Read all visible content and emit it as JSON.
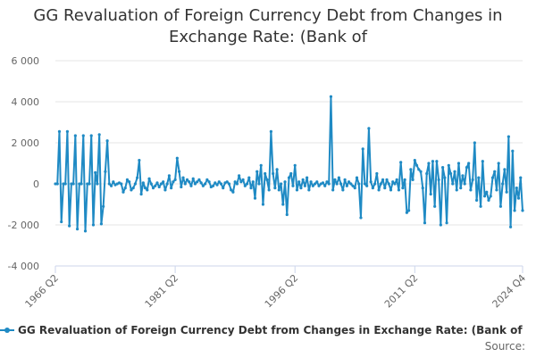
{
  "chart_data": {
    "type": "line",
    "title": "GG Revaluation of Foreign Currency Debt from Changes in Exchange Rate: (Bank of",
    "xlabel": "",
    "ylabel": "",
    "ylim": [
      -4000,
      6000
    ],
    "y_ticks": [
      6000,
      4000,
      2000,
      0,
      -2000,
      -4000
    ],
    "y_tick_labels": [
      "6 000",
      "4 000",
      "2 000",
      "0",
      "-2 000",
      "-4 000"
    ],
    "x_range": [
      "1966 Q2",
      "2024 Q4"
    ],
    "x_ticks": [
      "1966 Q2",
      "1981 Q2",
      "1996 Q2",
      "2011 Q2",
      "2024 Q4"
    ],
    "grid": true,
    "legend_position": "bottom",
    "series": [
      {
        "name": "GG Revaluation of Foreign Currency Debt from Changes in Exchange Rate: (Bank of",
        "color": "#1f8ac4",
        "points": [
          [
            "1966 Q2",
            0
          ],
          [
            "1966 Q3",
            0
          ],
          [
            "1966 Q4",
            2550
          ],
          [
            "1967 Q1",
            -1850
          ],
          [
            "1967 Q2",
            0
          ],
          [
            "1967 Q3",
            0
          ],
          [
            "1967 Q4",
            2550
          ],
          [
            "1968 Q1",
            -2050
          ],
          [
            "1968 Q2",
            0
          ],
          [
            "1968 Q3",
            0
          ],
          [
            "1968 Q4",
            2350
          ],
          [
            "1969 Q1",
            -2200
          ],
          [
            "1969 Q2",
            0
          ],
          [
            "1969 Q3",
            0
          ],
          [
            "1969 Q4",
            2350
          ],
          [
            "1970 Q1",
            -2300
          ],
          [
            "1970 Q2",
            0
          ],
          [
            "1970 Q3",
            0
          ],
          [
            "1970 Q4",
            2350
          ],
          [
            "1971 Q1",
            -2000
          ],
          [
            "1971 Q2",
            550
          ],
          [
            "1971 Q3",
            0
          ],
          [
            "1971 Q4",
            2400
          ],
          [
            "1972 Q1",
            -1950
          ],
          [
            "1972 Q2",
            -1100
          ],
          [
            "1972 Q3",
            600
          ],
          [
            "1972 Q4",
            2100
          ],
          [
            "1973 Q1",
            0
          ],
          [
            "1973 Q2",
            -100
          ],
          [
            "1973 Q3",
            100
          ],
          [
            "1973 Q4",
            -50
          ],
          [
            "1974 Q1",
            0
          ],
          [
            "1974 Q2",
            50
          ],
          [
            "1974 Q3",
            0
          ],
          [
            "1974 Q4",
            -400
          ],
          [
            "1975 Q1",
            -200
          ],
          [
            "1975 Q2",
            200
          ],
          [
            "1975 Q3",
            100
          ],
          [
            "1975 Q4",
            -300
          ],
          [
            "1976 Q1",
            -200
          ],
          [
            "1976 Q2",
            0
          ],
          [
            "1976 Q3",
            300
          ],
          [
            "1976 Q4",
            1150
          ],
          [
            "1977 Q1",
            -500
          ],
          [
            "1977 Q2",
            50
          ],
          [
            "1977 Q3",
            -200
          ],
          [
            "1977 Q4",
            -300
          ],
          [
            "1978 Q1",
            250
          ],
          [
            "1978 Q2",
            0
          ],
          [
            "1978 Q3",
            -200
          ],
          [
            "1978 Q4",
            -100
          ],
          [
            "1979 Q1",
            50
          ],
          [
            "1979 Q2",
            -150
          ],
          [
            "1979 Q3",
            0
          ],
          [
            "1979 Q4",
            100
          ],
          [
            "1980 Q1",
            -300
          ],
          [
            "1980 Q2",
            0
          ],
          [
            "1980 Q3",
            400
          ],
          [
            "1980 Q4",
            -200
          ],
          [
            "1981 Q1",
            100
          ],
          [
            "1981 Q2",
            200
          ],
          [
            "1981 Q3",
            1250
          ],
          [
            "1981 Q4",
            600
          ],
          [
            "1982 Q1",
            -150
          ],
          [
            "1982 Q2",
            300
          ],
          [
            "1982 Q3",
            0
          ],
          [
            "1982 Q4",
            200
          ],
          [
            "1983 Q1",
            100
          ],
          [
            "1983 Q2",
            -100
          ],
          [
            "1983 Q3",
            250
          ],
          [
            "1983 Q4",
            0
          ],
          [
            "1984 Q1",
            100
          ],
          [
            "1984 Q2",
            200
          ],
          [
            "1984 Q3",
            50
          ],
          [
            "1984 Q4",
            -100
          ],
          [
            "1985 Q1",
            0
          ],
          [
            "1985 Q2",
            200
          ],
          [
            "1985 Q3",
            100
          ],
          [
            "1985 Q4",
            -150
          ],
          [
            "1986 Q1",
            -100
          ],
          [
            "1986 Q2",
            50
          ],
          [
            "1986 Q3",
            -50
          ],
          [
            "1986 Q4",
            100
          ],
          [
            "1987 Q1",
            0
          ],
          [
            "1987 Q2",
            -200
          ],
          [
            "1987 Q3",
            50
          ],
          [
            "1987 Q4",
            100
          ],
          [
            "1988 Q1",
            0
          ],
          [
            "1988 Q2",
            -300
          ],
          [
            "1988 Q3",
            -400
          ],
          [
            "1988 Q4",
            100
          ],
          [
            "1989 Q1",
            0
          ],
          [
            "1989 Q2",
            400
          ],
          [
            "1989 Q3",
            100
          ],
          [
            "1989 Q4",
            200
          ],
          [
            "1990 Q1",
            -100
          ],
          [
            "1990 Q2",
            0
          ],
          [
            "1990 Q3",
            300
          ],
          [
            "1990 Q4",
            -200
          ],
          [
            "1991 Q1",
            100
          ],
          [
            "1991 Q2",
            -700
          ],
          [
            "1991 Q3",
            600
          ],
          [
            "1991 Q4",
            0
          ],
          [
            "1992 Q1",
            900
          ],
          [
            "1992 Q2",
            -1000
          ],
          [
            "1992 Q3",
            500
          ],
          [
            "1992 Q4",
            200
          ],
          [
            "1993 Q1",
            -300
          ],
          [
            "1993 Q2",
            2550
          ],
          [
            "1993 Q3",
            500
          ],
          [
            "1993 Q4",
            -200
          ],
          [
            "1994 Q1",
            700
          ],
          [
            "1994 Q2",
            -300
          ],
          [
            "1994 Q3",
            0
          ],
          [
            "1994 Q4",
            -1000
          ],
          [
            "1995 Q1",
            100
          ],
          [
            "1995 Q2",
            -1500
          ],
          [
            "1995 Q3",
            300
          ],
          [
            "1995 Q4",
            500
          ],
          [
            "1996 Q1",
            -100
          ],
          [
            "1996 Q2",
            900
          ],
          [
            "1996 Q3",
            -300
          ],
          [
            "1996 Q4",
            100
          ],
          [
            "1997 Q1",
            -200
          ],
          [
            "1997 Q2",
            200
          ],
          [
            "1997 Q3",
            -100
          ],
          [
            "1997 Q4",
            300
          ],
          [
            "1998 Q1",
            -300
          ],
          [
            "1998 Q2",
            100
          ],
          [
            "1998 Q3",
            -100
          ],
          [
            "1998 Q4",
            0
          ],
          [
            "1999 Q1",
            100
          ],
          [
            "1999 Q2",
            -100
          ],
          [
            "1999 Q3",
            0
          ],
          [
            "1999 Q4",
            50
          ],
          [
            "2000 Q1",
            -100
          ],
          [
            "2000 Q2",
            100
          ],
          [
            "2000 Q3",
            0
          ],
          [
            "2000 Q4",
            4250
          ],
          [
            "2001 Q1",
            -300
          ],
          [
            "2001 Q2",
            200
          ],
          [
            "2001 Q3",
            0
          ],
          [
            "2001 Q4",
            300
          ],
          [
            "2002 Q1",
            0
          ],
          [
            "2002 Q2",
            -300
          ],
          [
            "2002 Q3",
            200
          ],
          [
            "2002 Q4",
            -100
          ],
          [
            "2003 Q1",
            100
          ],
          [
            "2003 Q2",
            0
          ],
          [
            "2003 Q3",
            -100
          ],
          [
            "2003 Q4",
            -200
          ],
          [
            "2004 Q1",
            300
          ],
          [
            "2004 Q2",
            0
          ],
          [
            "2004 Q3",
            -1650
          ],
          [
            "2004 Q4",
            1700
          ],
          [
            "2005 Q1",
            0
          ],
          [
            "2005 Q2",
            -100
          ],
          [
            "2005 Q3",
            2700
          ],
          [
            "2005 Q4",
            100
          ],
          [
            "2006 Q1",
            -200
          ],
          [
            "2006 Q2",
            0
          ],
          [
            "2006 Q3",
            500
          ],
          [
            "2006 Q4",
            -300
          ],
          [
            "2007 Q1",
            0
          ],
          [
            "2007 Q2",
            200
          ],
          [
            "2007 Q3",
            -200
          ],
          [
            "2007 Q4",
            200
          ],
          [
            "2008 Q1",
            0
          ],
          [
            "2008 Q2",
            -300
          ],
          [
            "2008 Q3",
            100
          ],
          [
            "2008 Q4",
            0
          ],
          [
            "2009 Q1",
            200
          ],
          [
            "2009 Q2",
            -300
          ],
          [
            "2009 Q3",
            1050
          ],
          [
            "2009 Q4",
            -200
          ],
          [
            "2010 Q1",
            200
          ],
          [
            "2010 Q2",
            -1400
          ],
          [
            "2010 Q3",
            -1300
          ],
          [
            "2010 Q4",
            700
          ],
          [
            "2011 Q1",
            200
          ],
          [
            "2011 Q2",
            1150
          ],
          [
            "2011 Q3",
            900
          ],
          [
            "2011 Q4",
            700
          ],
          [
            "2012 Q1",
            600
          ],
          [
            "2012 Q2",
            -200
          ],
          [
            "2012 Q3",
            -1900
          ],
          [
            "2012 Q4",
            500
          ],
          [
            "2013 Q1",
            1000
          ],
          [
            "2013 Q2",
            -500
          ],
          [
            "2013 Q3",
            1100
          ],
          [
            "2013 Q4",
            -1100
          ],
          [
            "2014 Q1",
            1100
          ],
          [
            "2014 Q2",
            200
          ],
          [
            "2014 Q3",
            -2000
          ],
          [
            "2014 Q4",
            800
          ],
          [
            "2015 Q1",
            300
          ],
          [
            "2015 Q2",
            -1900
          ],
          [
            "2015 Q3",
            900
          ],
          [
            "2015 Q4",
            500
          ],
          [
            "2016 Q1",
            0
          ],
          [
            "2016 Q2",
            600
          ],
          [
            "2016 Q3",
            -300
          ],
          [
            "2016 Q4",
            1000
          ],
          [
            "2017 Q1",
            -200
          ],
          [
            "2017 Q2",
            400
          ],
          [
            "2017 Q3",
            0
          ],
          [
            "2017 Q4",
            800
          ],
          [
            "2018 Q1",
            1000
          ],
          [
            "2018 Q2",
            -300
          ],
          [
            "2018 Q3",
            200
          ],
          [
            "2018 Q4",
            2000
          ],
          [
            "2019 Q1",
            -800
          ],
          [
            "2019 Q2",
            300
          ],
          [
            "2019 Q3",
            -1100
          ],
          [
            "2019 Q4",
            1100
          ],
          [
            "2020 Q1",
            -600
          ],
          [
            "2020 Q2",
            -400
          ],
          [
            "2020 Q3",
            -800
          ],
          [
            "2020 Q4",
            -600
          ],
          [
            "2021 Q1",
            300
          ],
          [
            "2021 Q2",
            600
          ],
          [
            "2021 Q3",
            -300
          ],
          [
            "2021 Q4",
            1000
          ],
          [
            "2022 Q1",
            -1100
          ],
          [
            "2022 Q2",
            0
          ],
          [
            "2022 Q3",
            700
          ],
          [
            "2022 Q4",
            -400
          ],
          [
            "2023 Q1",
            2300
          ],
          [
            "2023 Q2",
            -2100
          ],
          [
            "2023 Q3",
            1600
          ],
          [
            "2023 Q4",
            -1300
          ],
          [
            "2024 Q1",
            -200
          ],
          [
            "2024 Q2",
            -700
          ],
          [
            "2024 Q3",
            300
          ],
          [
            "2024 Q4",
            -1300
          ]
        ]
      }
    ],
    "source_label": "Source:"
  }
}
